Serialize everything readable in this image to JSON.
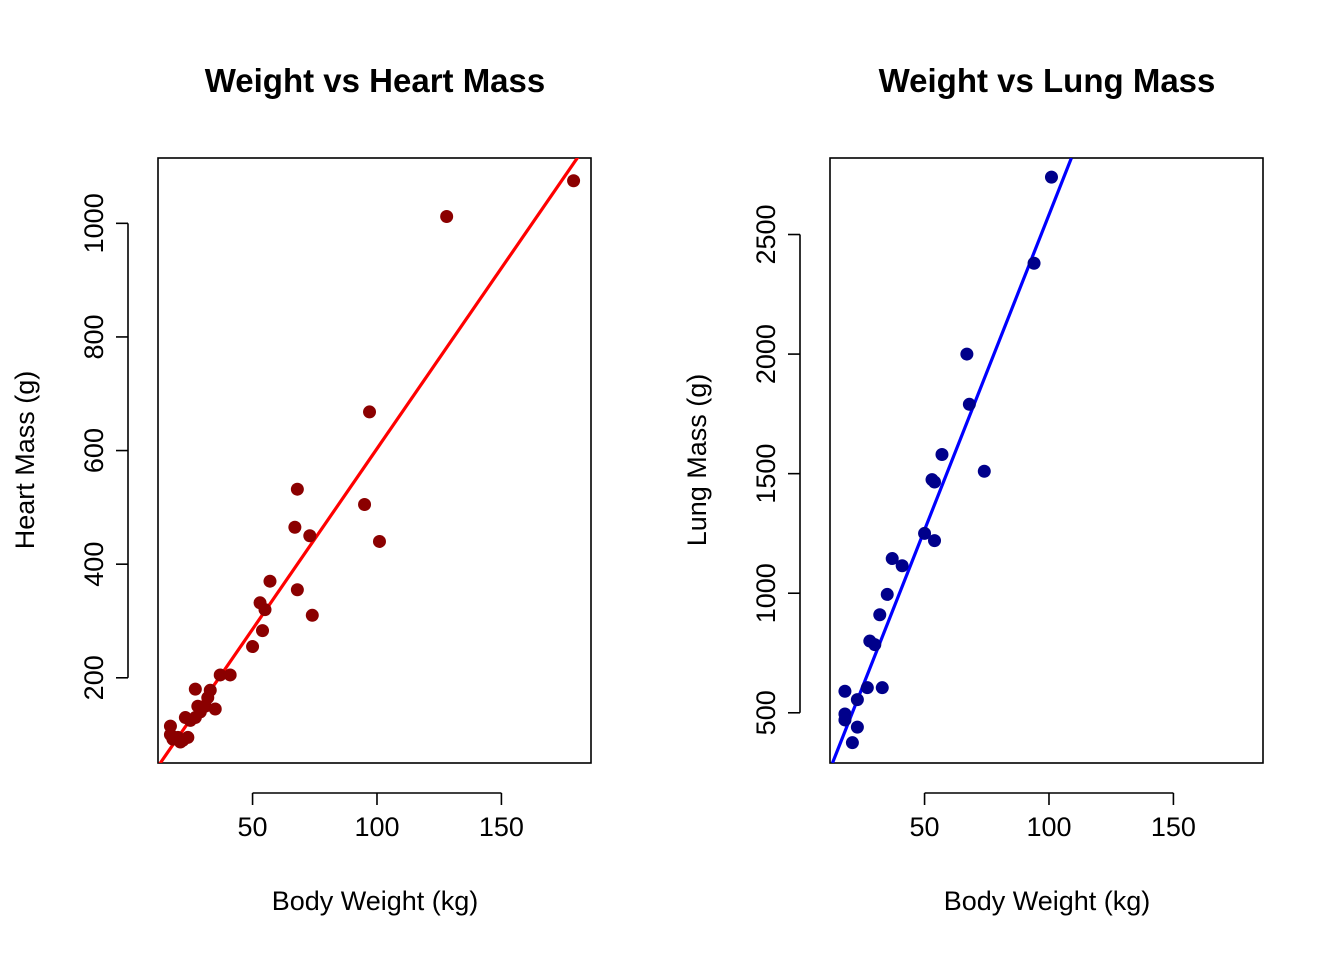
{
  "chart_data": [
    {
      "type": "scatter",
      "title": "Weight vs Heart Mass",
      "xlabel": "Body Weight (kg)",
      "ylabel": "Heart Mass (g)",
      "xlim": [
        12,
        186
      ],
      "ylim": [
        50,
        1115
      ],
      "xticks": [
        50,
        100,
        150
      ],
      "yticks": [
        200,
        400,
        600,
        800,
        1000
      ],
      "point_color": "#8b0000",
      "line_color": "#ff0000",
      "fit_line": {
        "x": [
          12,
          186
        ],
        "y": [
          44,
          1150
        ]
      },
      "series": [
        {
          "x": [
            17,
            17,
            18,
            20,
            21,
            22,
            23,
            24,
            25,
            27,
            27,
            28,
            29,
            31,
            32,
            33,
            35,
            37,
            41,
            50,
            53,
            54,
            55,
            57,
            67,
            68,
            68,
            73,
            74,
            95,
            97,
            101,
            128,
            179
          ],
          "y": [
            115,
            100,
            92,
            95,
            87,
            90,
            130,
            95,
            125,
            130,
            180,
            150,
            140,
            150,
            165,
            178,
            145,
            205,
            205,
            255,
            332,
            283,
            320,
            370,
            465,
            532,
            355,
            450,
            310,
            505,
            668,
            440,
            1012,
            1075
          ]
        }
      ]
    },
    {
      "type": "scatter",
      "title": "Weight vs Lung Mass",
      "xlabel": "Body Weight (kg)",
      "ylabel": "Lung Mass (g)",
      "xlim": [
        12,
        186
      ],
      "ylim": [
        290,
        2820
      ],
      "xticks": [
        50,
        100,
        150
      ],
      "yticks": [
        500,
        1000,
        1500,
        2000,
        2500
      ],
      "point_color": "#00008b",
      "line_color": "#0000ff",
      "fit_line": {
        "x": [
          13,
          109
        ],
        "y": [
          290,
          2820
        ]
      },
      "series": [
        {
          "x": [
            18,
            18,
            18,
            21,
            23,
            23,
            27,
            28,
            30,
            32,
            33,
            35,
            37,
            41,
            50,
            53,
            54,
            54,
            57,
            67,
            68,
            74,
            94,
            101
          ],
          "y": [
            495,
            470,
            590,
            375,
            555,
            440,
            605,
            800,
            785,
            910,
            605,
            995,
            1145,
            1115,
            1250,
            1475,
            1465,
            1220,
            1580,
            2000,
            1790,
            1510,
            2380,
            2740
          ]
        }
      ]
    }
  ]
}
